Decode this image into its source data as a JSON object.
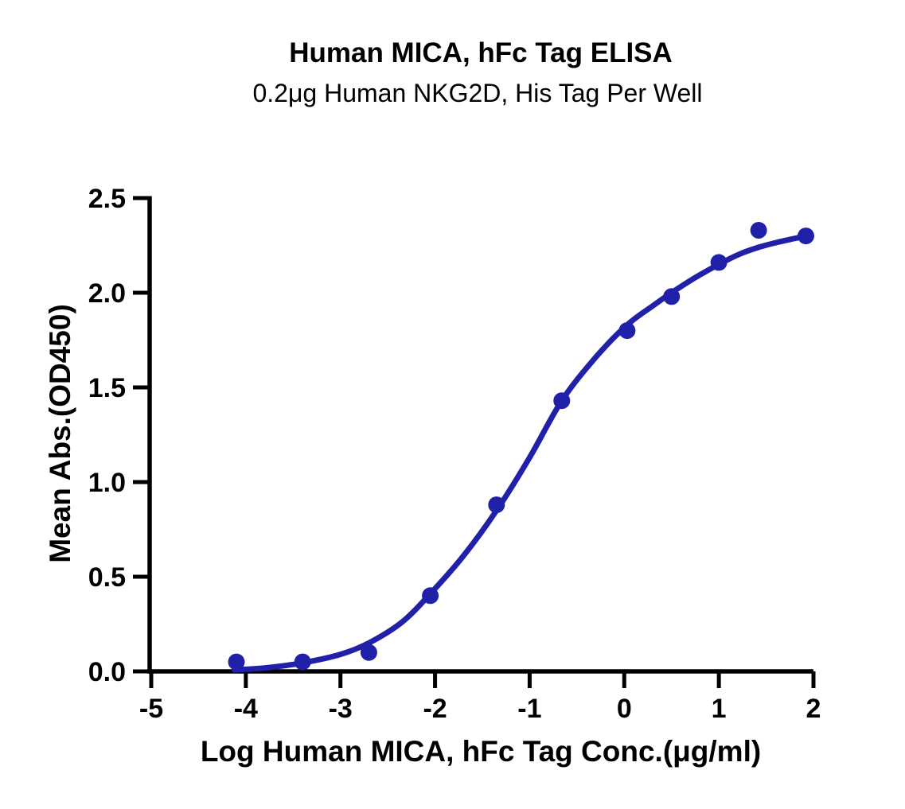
{
  "chart_data": {
    "type": "scatter",
    "title": "Human MICA, hFc Tag ELISA",
    "subtitle": "0.2μg Human NKG2D, His Tag Per Well",
    "xlabel": "Log Human MICA, hFc Tag Conc.(μg/ml)",
    "ylabel": "Mean Abs.(OD450)",
    "xlim": [
      -5,
      2
    ],
    "ylim": [
      0,
      2.5
    ],
    "x_ticks": [
      "-5",
      "-4",
      "-3",
      "-2",
      "-1",
      "0",
      "1",
      "2"
    ],
    "y_ticks": [
      "0.0",
      "0.5",
      "1.0",
      "1.5",
      "2.0",
      "2.5"
    ],
    "grid": false,
    "legend": "none",
    "accent_color": "#2020A8",
    "axis_color": "#000000",
    "series": [
      {
        "name": "Human MICA, hFc Tag",
        "marker": "circle",
        "x": [
          -4.1,
          -3.4,
          -2.7,
          -2.05,
          -1.35,
          -0.66,
          0.03,
          0.5,
          1.0,
          1.42,
          1.92
        ],
        "y": [
          0.05,
          0.05,
          0.1,
          0.4,
          0.88,
          1.43,
          1.8,
          1.98,
          2.16,
          2.33,
          2.3
        ]
      }
    ],
    "fit_curve": {
      "model": "4PL dose-response sigmoid",
      "points": [
        [
          -4.12,
          0.008
        ],
        [
          -3.8,
          0.018
        ],
        [
          -3.4,
          0.045
        ],
        [
          -3.0,
          0.09
        ],
        [
          -2.7,
          0.15
        ],
        [
          -2.35,
          0.26
        ],
        [
          -2.05,
          0.41
        ],
        [
          -1.7,
          0.61
        ],
        [
          -1.35,
          0.85
        ],
        [
          -1.0,
          1.13
        ],
        [
          -0.66,
          1.43
        ],
        [
          -0.3,
          1.66
        ],
        [
          0.03,
          1.83
        ],
        [
          0.3,
          1.93
        ],
        [
          0.5,
          2.0
        ],
        [
          0.75,
          2.08
        ],
        [
          1.0,
          2.15
        ],
        [
          1.2,
          2.2
        ],
        [
          1.42,
          2.24
        ],
        [
          1.65,
          2.27
        ],
        [
          1.92,
          2.3
        ]
      ]
    }
  }
}
